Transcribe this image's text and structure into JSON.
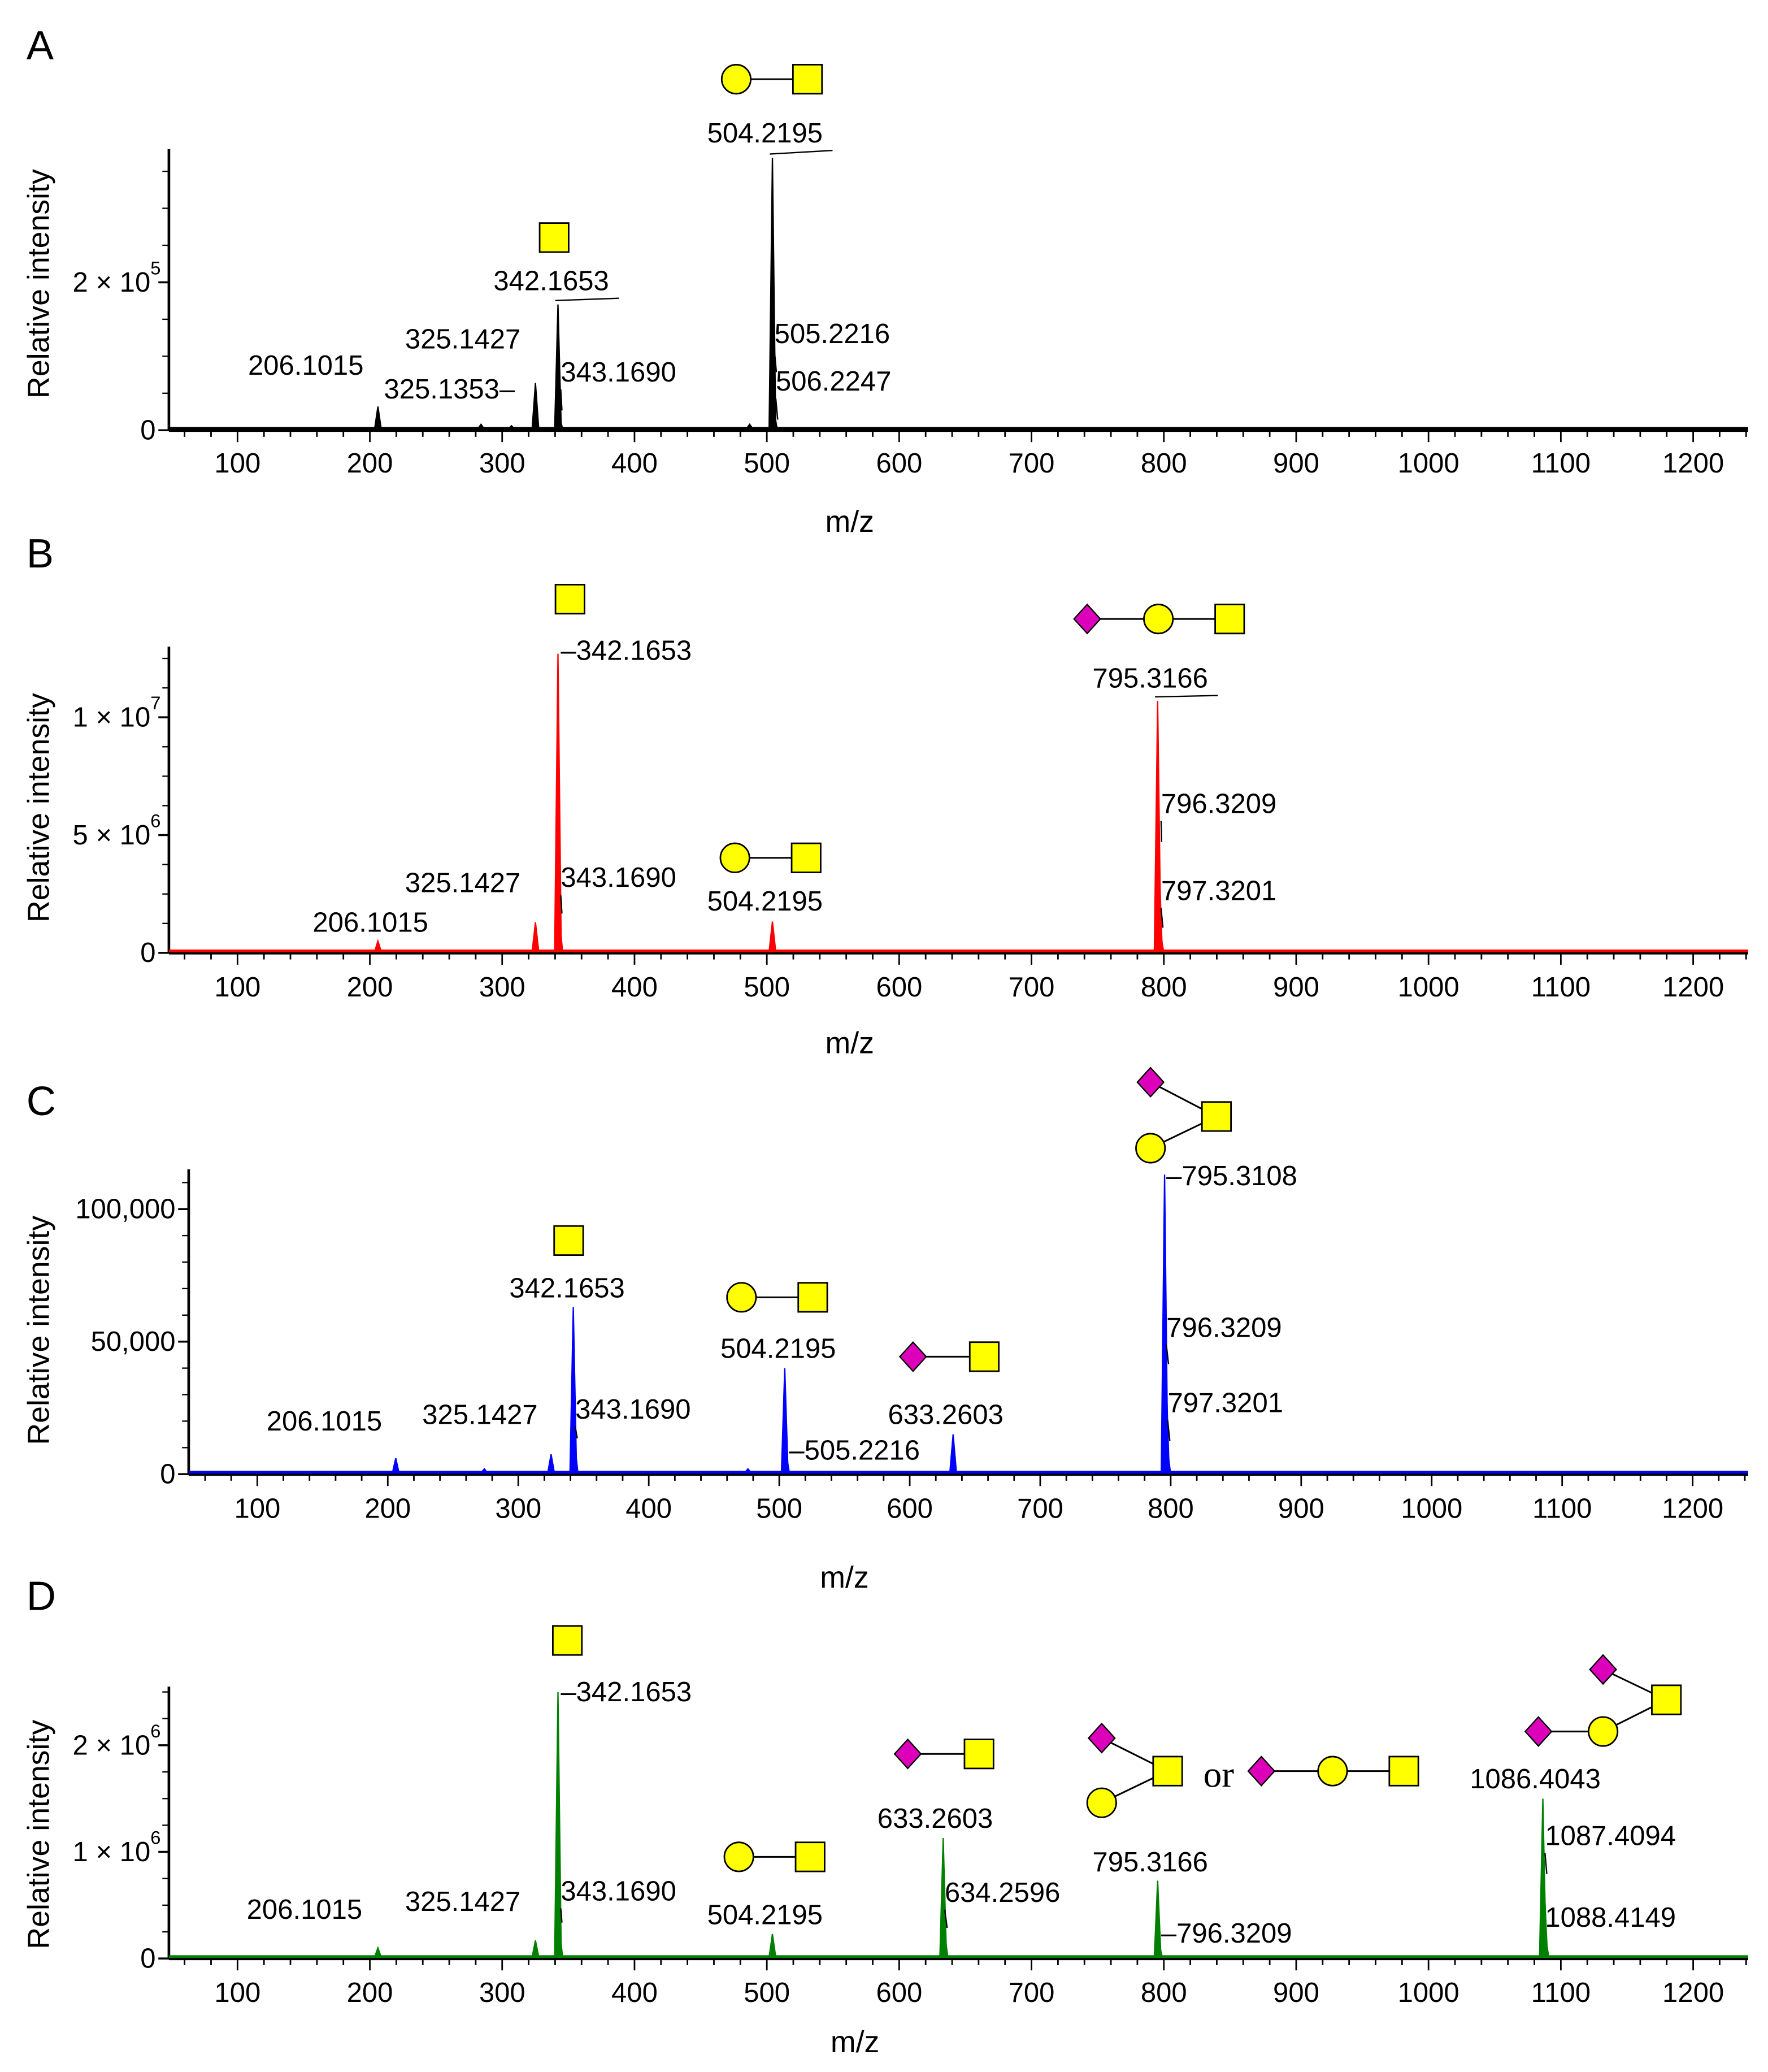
{
  "colors": {
    "A": "#000000",
    "B": "#ff0000",
    "C": "#0000ff",
    "D": "#008000",
    "hex_nac": "#ffff00",
    "galactose": "#ffff00",
    "sialic_acid": "#dd00bb"
  },
  "chart_data": [
    {
      "type": "line",
      "panel": "A",
      "title": "A",
      "xlabel": "m/z",
      "ylabel": "Relative intensity",
      "xlim": [
        50,
        1240
      ],
      "ylim": [
        0,
        380000
      ],
      "x_ticks": [
        "100",
        "200",
        "300",
        "400",
        "500",
        "600",
        "700",
        "800",
        "900",
        "1000",
        "1100",
        "1200"
      ],
      "y_ticks": [
        {
          "value": 0,
          "label": "0",
          "sup": ""
        },
        {
          "value": 200000,
          "label": "2 × 10",
          "sup": "5"
        }
      ],
      "peaks": [
        {
          "mz": 206.1015,
          "intensity": 32000,
          "label": "206.1015"
        },
        {
          "mz": 325.1353,
          "intensity": 20000,
          "label": "325.1353–"
        },
        {
          "mz": 325.1427,
          "intensity": 64000,
          "label": "325.1427"
        },
        {
          "mz": 342.1653,
          "intensity": 170000,
          "label": "342.1653"
        },
        {
          "mz": 343.169,
          "intensity": 20000,
          "label": "343.1690"
        },
        {
          "mz": 504.2195,
          "intensity": 368000,
          "label": "504.2195"
        },
        {
          "mz": 505.2216,
          "intensity": 30000,
          "label": "505.2216"
        },
        {
          "mz": 506.2247,
          "intensity": 8000,
          "label": "506.2247"
        },
        {
          "mz": 284,
          "intensity": 8000,
          "label": ""
        },
        {
          "mz": 307,
          "intensity": 6000,
          "label": ""
        },
        {
          "mz": 487,
          "intensity": 8000,
          "label": ""
        }
      ],
      "other_text": []
    },
    {
      "type": "line",
      "panel": "B",
      "title": "B",
      "xlabel": "m/z",
      "ylabel": "Relative intensity",
      "xlim": [
        50,
        1240
      ],
      "ylim": [
        0,
        13000000
      ],
      "x_ticks": [
        "100",
        "200",
        "300",
        "400",
        "500",
        "600",
        "700",
        "800",
        "900",
        "1000",
        "1100",
        "1200"
      ],
      "y_ticks": [
        {
          "value": 0,
          "label": "0",
          "sup": ""
        },
        {
          "value": 5000000,
          "label": "5 × 10",
          "sup": "6"
        },
        {
          "value": 10000000,
          "label": "1 × 10",
          "sup": "7"
        }
      ],
      "peaks": [
        {
          "mz": 206.1015,
          "intensity": 500000,
          "label": "206.1015"
        },
        {
          "mz": 325.1427,
          "intensity": 1300000,
          "label": "325.1427"
        },
        {
          "mz": 342.1653,
          "intensity": 12700000,
          "label": "–342.1653"
        },
        {
          "mz": 343.169,
          "intensity": 1500000,
          "label": "343.1690"
        },
        {
          "mz": 504.2195,
          "intensity": 1330000,
          "label": "504.2195"
        },
        {
          "mz": 795.3166,
          "intensity": 10700000,
          "label": "795.3166"
        },
        {
          "mz": 796.3209,
          "intensity": 4000000,
          "label": "796.3209"
        },
        {
          "mz": 797.3201,
          "intensity": 900000,
          "label": "797.3201"
        }
      ],
      "other_text": []
    },
    {
      "type": "line",
      "panel": "C",
      "title": "C",
      "xlabel": "m/z",
      "ylabel": "Relative intensity",
      "xlim": [
        50,
        1240
      ],
      "ylim": [
        0,
        115000
      ],
      "x_ticks": [
        "100",
        "200",
        "300",
        "400",
        "500",
        "600",
        "700",
        "800",
        "900",
        "1000",
        "1100",
        "1200"
      ],
      "y_ticks": [
        {
          "value": 0,
          "label": "0",
          "sup": ""
        },
        {
          "value": 50000,
          "label": "50,000",
          "sup": ""
        },
        {
          "value": 100000,
          "label": "100,000",
          "sup": ""
        }
      ],
      "peaks": [
        {
          "mz": 206.1015,
          "intensity": 6000,
          "label": "206.1015"
        },
        {
          "mz": 325.1427,
          "intensity": 7500,
          "label": "325.1427"
        },
        {
          "mz": 342.1653,
          "intensity": 63000,
          "label": "342.1653"
        },
        {
          "mz": 343.169,
          "intensity": 12000,
          "label": "343.1690"
        },
        {
          "mz": 504.2195,
          "intensity": 40000,
          "label": "504.2195"
        },
        {
          "mz": 505.2216,
          "intensity": 8000,
          "label": "–505.2216"
        },
        {
          "mz": 633.2603,
          "intensity": 15000,
          "label": "633.2603"
        },
        {
          "mz": 795.3108,
          "intensity": 113000,
          "label": "–795.3108"
        },
        {
          "mz": 796.3209,
          "intensity": 40000,
          "label": "796.3209"
        },
        {
          "mz": 797.3201,
          "intensity": 10000,
          "label": "797.3201"
        },
        {
          "mz": 274,
          "intensity": 2000,
          "label": ""
        },
        {
          "mz": 476,
          "intensity": 2000,
          "label": ""
        }
      ],
      "other_text": []
    },
    {
      "type": "line",
      "panel": "D",
      "title": "D",
      "xlabel": "m/z",
      "ylabel": "Relative intensity",
      "xlim": [
        50,
        1240
      ],
      "ylim": [
        0,
        2550000
      ],
      "x_ticks": [
        "100",
        "200",
        "300",
        "400",
        "500",
        "600",
        "700",
        "800",
        "900",
        "1000",
        "1100",
        "1200"
      ],
      "y_ticks": [
        {
          "value": 0,
          "label": "0",
          "sup": ""
        },
        {
          "value": 1000000,
          "label": "1 × 10",
          "sup": "6"
        },
        {
          "value": 2000000,
          "label": "2 × 10",
          "sup": "6"
        }
      ],
      "peaks": [
        {
          "mz": 206.1015,
          "intensity": 100000,
          "label": "206.1015"
        },
        {
          "mz": 325.1427,
          "intensity": 170000,
          "label": "325.1427"
        },
        {
          "mz": 342.1653,
          "intensity": 2500000,
          "label": "–342.1653"
        },
        {
          "mz": 343.169,
          "intensity": 300000,
          "label": "343.1690"
        },
        {
          "mz": 504.2195,
          "intensity": 230000,
          "label": "504.2195"
        },
        {
          "mz": 633.2603,
          "intensity": 1130000,
          "label": "633.2603"
        },
        {
          "mz": 634.2596,
          "intensity": 250000,
          "label": "634.2596"
        },
        {
          "mz": 795.3166,
          "intensity": 730000,
          "label": "795.3166"
        },
        {
          "mz": 796.3209,
          "intensity": 150000,
          "label": "–796.3209"
        },
        {
          "mz": 1086.4043,
          "intensity": 1500000,
          "label": "1086.4043"
        },
        {
          "mz": 1087.4094,
          "intensity": 700000,
          "label": "1087.4094"
        },
        {
          "mz": 1088.4149,
          "intensity": 200000,
          "label": "1088.4149"
        }
      ],
      "other_text": [
        "or"
      ]
    }
  ]
}
